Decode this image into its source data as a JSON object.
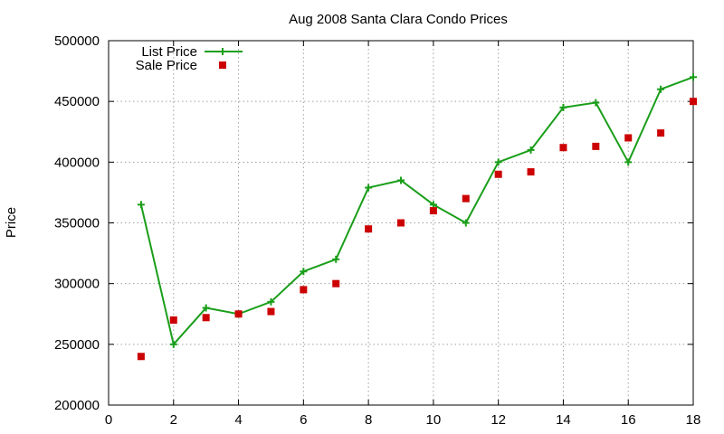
{
  "chart_data": {
    "type": "line",
    "title": "Aug 2008 Santa Clara Condo Prices",
    "xlabel": "",
    "ylabel": "Price",
    "xlim": [
      0,
      18
    ],
    "ylim": [
      200000,
      500000
    ],
    "x_ticks": [
      "0",
      "2",
      "4",
      "6",
      "8",
      "10",
      "12",
      "14",
      "16",
      "18"
    ],
    "y_ticks": [
      "200000",
      "250000",
      "300000",
      "350000",
      "400000",
      "450000",
      "500000"
    ],
    "grid": true,
    "legend_position": "top-left",
    "series": [
      {
        "name": "List Price",
        "style": "line-with-plus-markers",
        "color": "#1a9e1a",
        "x": [
          1,
          2,
          3,
          4,
          5,
          6,
          7,
          8,
          9,
          10,
          11,
          12,
          13,
          14,
          15,
          16,
          17,
          18
        ],
        "values": [
          365000,
          250000,
          280000,
          275000,
          285000,
          310000,
          320000,
          379000,
          385000,
          365000,
          350000,
          400000,
          410000,
          445000,
          449000,
          400000,
          460000,
          470000
        ]
      },
      {
        "name": "Sale Price",
        "style": "square-markers",
        "color": "#cc0000",
        "x": [
          1,
          2,
          3,
          4,
          5,
          6,
          7,
          8,
          9,
          10,
          11,
          12,
          13,
          14,
          15,
          16,
          17,
          18
        ],
        "values": [
          240000,
          270000,
          272000,
          275000,
          277000,
          295000,
          300000,
          345000,
          350000,
          360000,
          370000,
          390000,
          392000,
          412000,
          413000,
          420000,
          424000,
          450000
        ]
      }
    ]
  }
}
